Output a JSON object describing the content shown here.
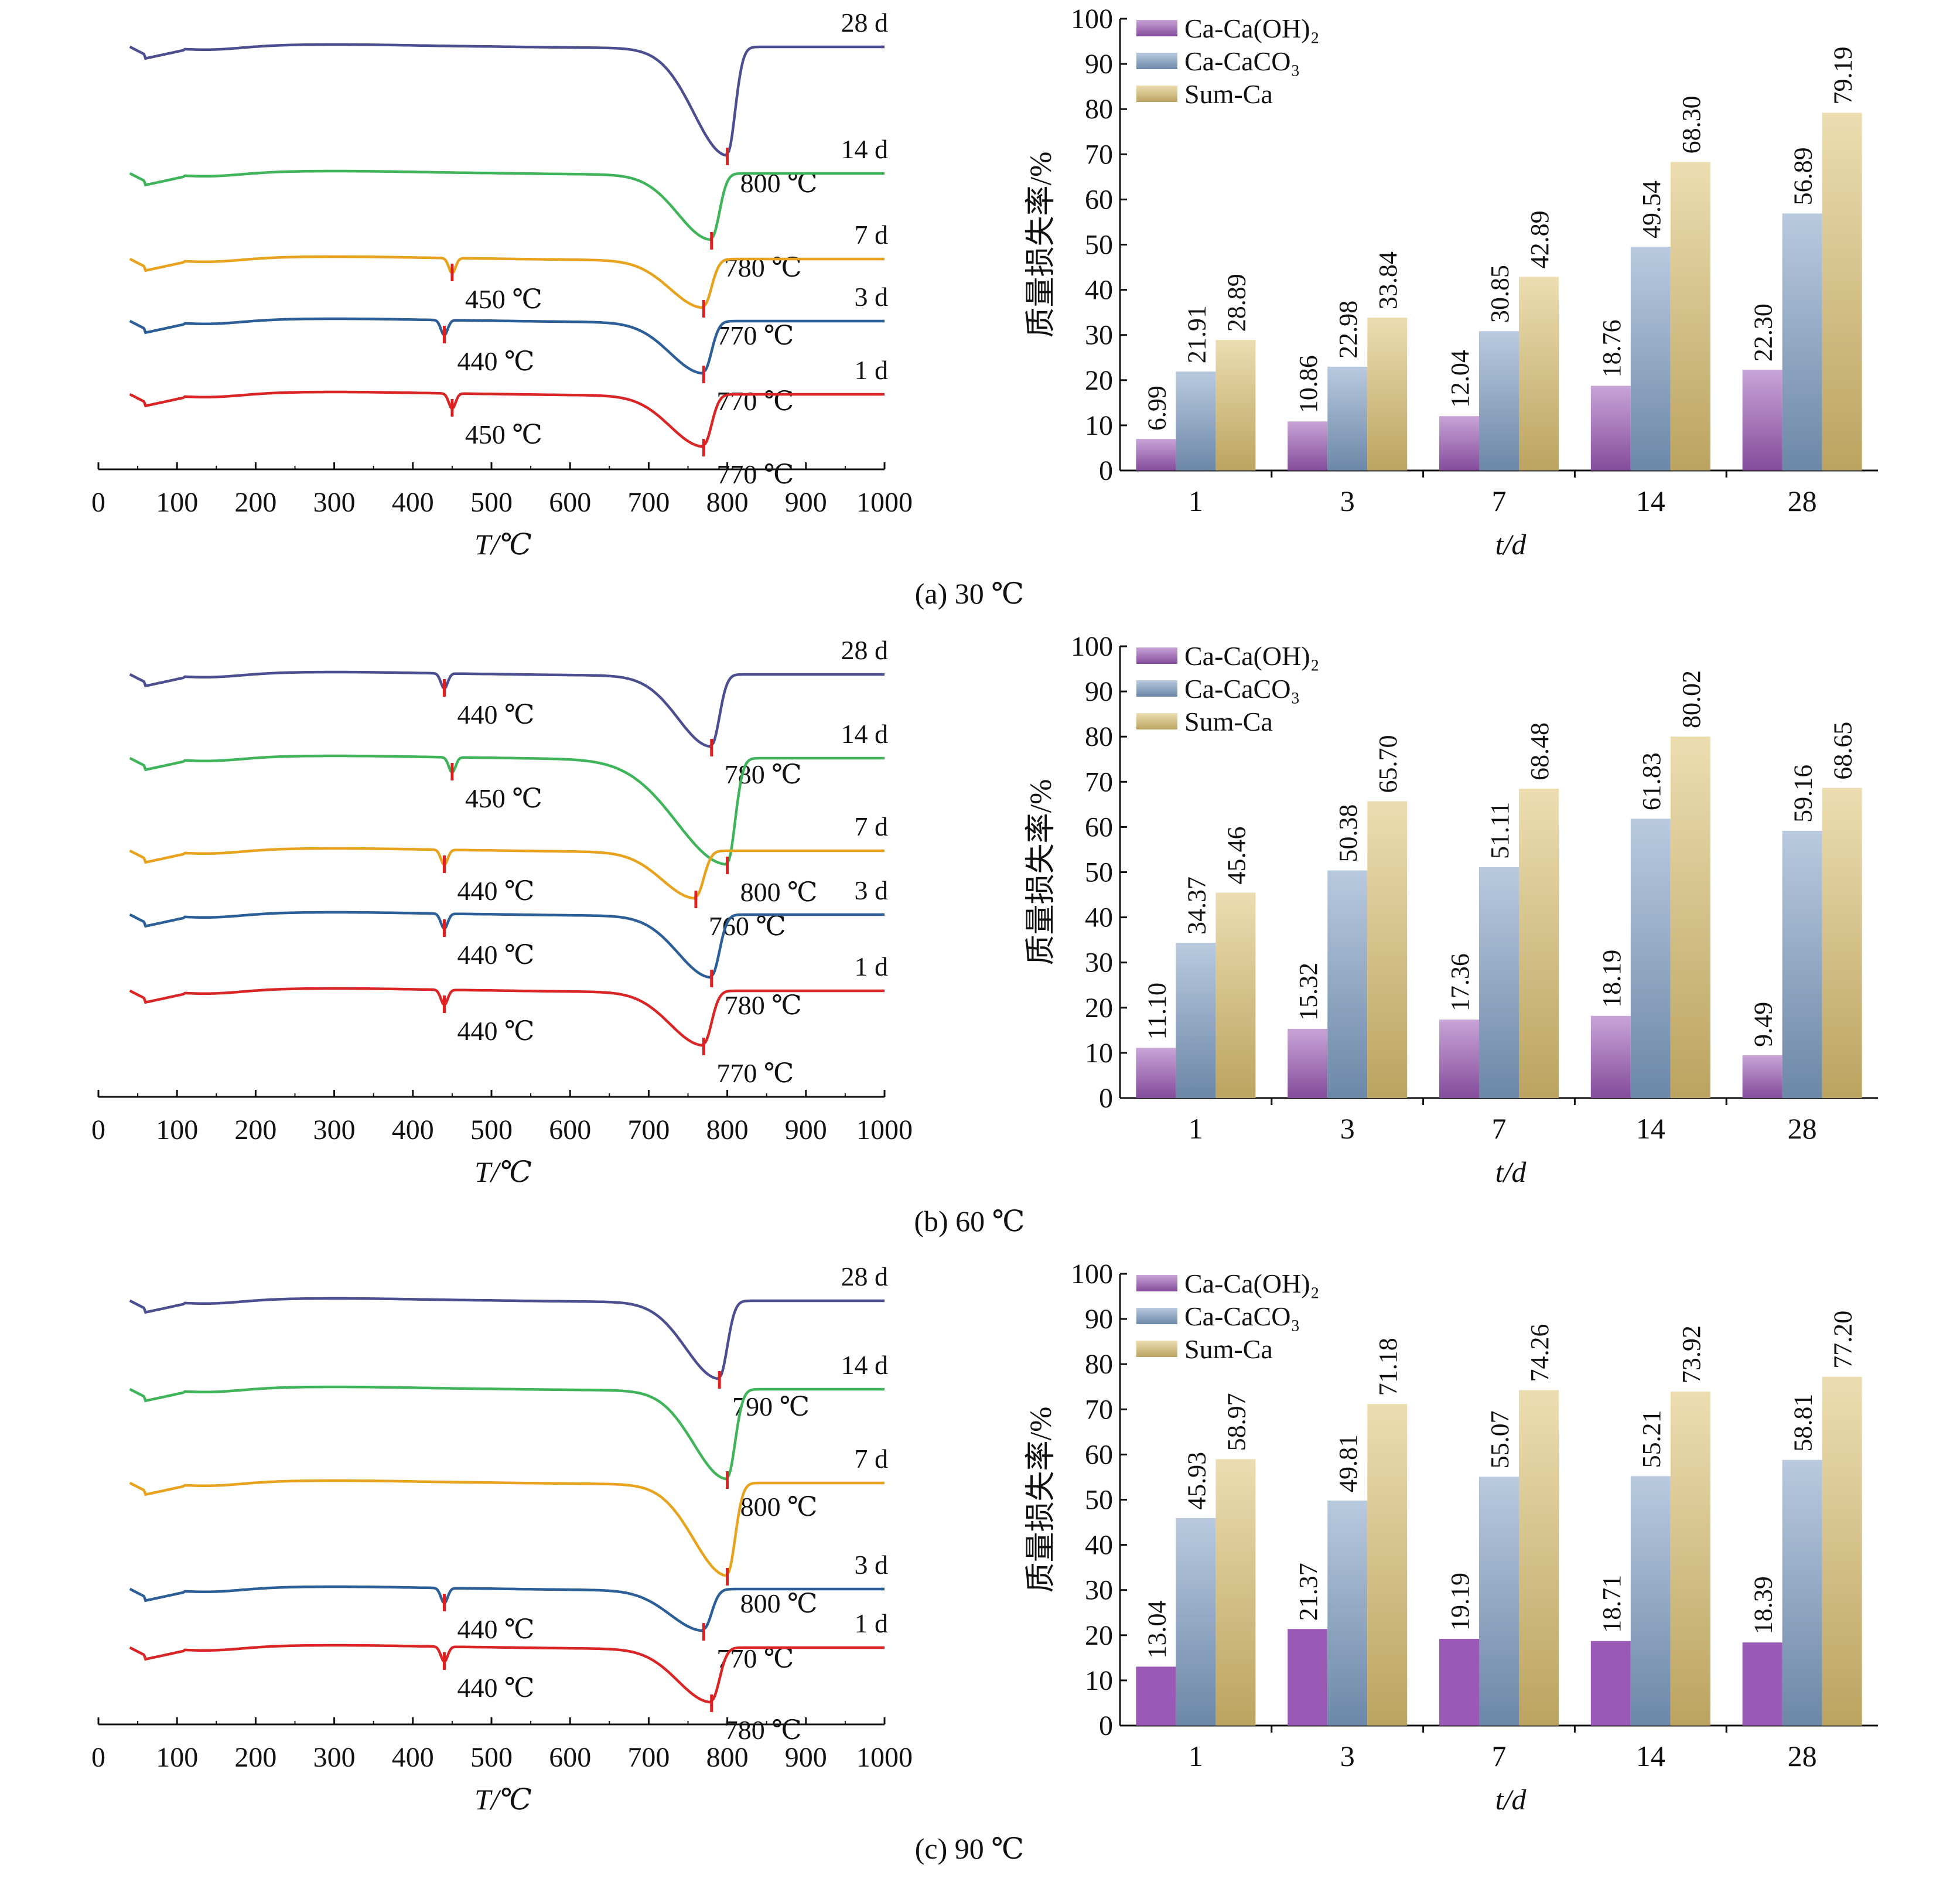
{
  "colors": {
    "ca_oh2": "#9b59b6",
    "ca_caco3": "#7f9fc4",
    "sum_ca": "#dcc172",
    "curve_28d": "#4b4f8f",
    "curve_14d": "#3fb45a",
    "curve_7d": "#e8a31e",
    "curve_3d": "#2c5e97",
    "curve_1d": "#d92525",
    "peak_marker": "#e02020"
  },
  "panels": [
    {
      "caption": "(a) 30 ℃",
      "tg": {
        "xlabel": "T/℃",
        "xticks": [
          "0",
          "100",
          "200",
          "300",
          "400",
          "500",
          "600",
          "700",
          "800",
          "900",
          "1000"
        ],
        "curves": [
          {
            "name": "28 d",
            "color_key": "curve_28d",
            "peaks": [
              {
                "t": 800,
                "label": "800 ℃"
              }
            ]
          },
          {
            "name": "14 d",
            "color_key": "curve_14d",
            "peaks": [
              {
                "t": 780,
                "label": "780 ℃"
              }
            ]
          },
          {
            "name": "7 d",
            "color_key": "curve_7d",
            "peaks": [
              {
                "t": 450,
                "label": "450 ℃"
              },
              {
                "t": 770,
                "label": "770 ℃"
              }
            ]
          },
          {
            "name": "3 d",
            "color_key": "curve_3d",
            "peaks": [
              {
                "t": 440,
                "label": "440 ℃"
              },
              {
                "t": 770,
                "label": "770 ℃"
              }
            ]
          },
          {
            "name": "1 d",
            "color_key": "curve_1d",
            "peaks": [
              {
                "t": 450,
                "label": "450 ℃"
              },
              {
                "t": 770,
                "label": "770 ℃"
              }
            ]
          }
        ]
      },
      "bar": {
        "ylabel": "质量损失率/%",
        "xlabel": "t/d",
        "categories": [
          "1",
          "3",
          "7",
          "14",
          "28"
        ],
        "yticks": [
          "0",
          "10",
          "20",
          "30",
          "40",
          "50",
          "60",
          "70",
          "80",
          "90",
          "100"
        ],
        "series": [
          {
            "name": "Ca-Ca(OH)₂",
            "color_key": "ca_oh2",
            "values": [
              6.99,
              10.86,
              12.04,
              18.76,
              22.3
            ],
            "labels": [
              "6.99",
              "10.86",
              "12.04",
              "18.76",
              "22.30"
            ]
          },
          {
            "name": "Ca-CaCO₃",
            "color_key": "ca_caco3",
            "values": [
              21.91,
              22.98,
              30.85,
              49.54,
              56.89
            ],
            "labels": [
              "21.91",
              "22.98",
              "30.85",
              "49.54",
              "56.89"
            ]
          },
          {
            "name": "Sum-Ca",
            "color_key": "sum_ca",
            "values": [
              28.89,
              33.84,
              42.89,
              68.3,
              79.19
            ],
            "labels": [
              "28.89",
              "33.84",
              "42.89",
              "68.30",
              "79.19"
            ]
          }
        ]
      }
    },
    {
      "caption": "(b) 60 ℃",
      "tg": {
        "xlabel": "T/℃",
        "xticks": [
          "0",
          "100",
          "200",
          "300",
          "400",
          "500",
          "600",
          "700",
          "800",
          "900",
          "1000"
        ],
        "curves": [
          {
            "name": "28 d",
            "color_key": "curve_28d",
            "peaks": [
              {
                "t": 440,
                "label": "440 ℃"
              },
              {
                "t": 780,
                "label": "780 ℃"
              }
            ]
          },
          {
            "name": "14 d",
            "color_key": "curve_14d",
            "peaks": [
              {
                "t": 450,
                "label": "450 ℃"
              },
              {
                "t": 800,
                "label": "800 ℃"
              }
            ]
          },
          {
            "name": "7 d",
            "color_key": "curve_7d",
            "peaks": [
              {
                "t": 440,
                "label": "440 ℃"
              },
              {
                "t": 760,
                "label": "760 ℃"
              }
            ]
          },
          {
            "name": "3 d",
            "color_key": "curve_3d",
            "peaks": [
              {
                "t": 440,
                "label": "440 ℃"
              },
              {
                "t": 780,
                "label": "780 ℃"
              }
            ]
          },
          {
            "name": "1 d",
            "color_key": "curve_1d",
            "peaks": [
              {
                "t": 440,
                "label": "440 ℃"
              },
              {
                "t": 770,
                "label": "770 ℃"
              }
            ]
          }
        ]
      },
      "bar": {
        "ylabel": "质量损失率/%",
        "xlabel": "t/d",
        "categories": [
          "1",
          "3",
          "7",
          "14",
          "28"
        ],
        "yticks": [
          "0",
          "10",
          "20",
          "30",
          "40",
          "50",
          "60",
          "70",
          "80",
          "90",
          "100"
        ],
        "series": [
          {
            "name": "Ca-Ca(OH)₂",
            "color_key": "ca_oh2",
            "values": [
              11.1,
              15.32,
              17.36,
              18.19,
              9.49
            ],
            "labels": [
              "11.10",
              "15.32",
              "17.36",
              "18.19",
              "9.49"
            ]
          },
          {
            "name": "Ca-CaCO₃",
            "color_key": "ca_caco3",
            "values": [
              34.37,
              50.38,
              51.11,
              61.83,
              59.16
            ],
            "labels": [
              "34.37",
              "50.38",
              "51.11",
              "61.83",
              "59.16"
            ]
          },
          {
            "name": "Sum-Ca",
            "color_key": "sum_ca",
            "values": [
              45.46,
              65.7,
              68.48,
              80.02,
              68.65
            ],
            "labels": [
              "45.46",
              "65.70",
              "68.48",
              "80.02",
              "68.65"
            ]
          }
        ]
      }
    },
    {
      "caption": "(c) 90 ℃",
      "tg": {
        "xlabel": "T/℃",
        "xticks": [
          "0",
          "100",
          "200",
          "300",
          "400",
          "500",
          "600",
          "700",
          "800",
          "900",
          "1000"
        ],
        "curves": [
          {
            "name": "28 d",
            "color_key": "curve_28d",
            "peaks": [
              {
                "t": 790,
                "label": "790 ℃"
              }
            ]
          },
          {
            "name": "14 d",
            "color_key": "curve_14d",
            "peaks": [
              {
                "t": 800,
                "label": "800 ℃"
              }
            ]
          },
          {
            "name": "7 d",
            "color_key": "curve_7d",
            "peaks": [
              {
                "t": 800,
                "label": "800 ℃"
              }
            ]
          },
          {
            "name": "3 d",
            "color_key": "curve_3d",
            "peaks": [
              {
                "t": 440,
                "label": "440 ℃"
              },
              {
                "t": 770,
                "label": "770 ℃"
              }
            ]
          },
          {
            "name": "1 d",
            "color_key": "curve_1d",
            "peaks": [
              {
                "t": 440,
                "label": "440 ℃"
              },
              {
                "t": 780,
                "label": "780 ℃"
              }
            ]
          }
        ]
      },
      "bar": {
        "ylabel": "质量损失率/%",
        "xlabel": "t/d",
        "categories": [
          "1",
          "3",
          "7",
          "14",
          "28"
        ],
        "yticks": [
          "0",
          "10",
          "20",
          "30",
          "40",
          "50",
          "60",
          "70",
          "80",
          "90",
          "100"
        ],
        "series": [
          {
            "name": "Ca-Ca(OH)₂",
            "color_key": "ca_oh2",
            "values": [
              13.04,
              21.37,
              19.19,
              18.71,
              18.39
            ],
            "labels": [
              "13.04",
              "21.37",
              "19.19",
              "18.71",
              "18.39"
            ]
          },
          {
            "name": "Ca-CaCO₃",
            "color_key": "ca_caco3",
            "values": [
              45.93,
              49.81,
              55.07,
              55.21,
              58.81
            ],
            "labels": [
              "45.93",
              "49.81",
              "55.07",
              "55.21",
              "58.81"
            ]
          },
          {
            "name": "Sum-Ca",
            "color_key": "sum_ca",
            "values": [
              58.97,
              71.18,
              74.26,
              73.92,
              77.2
            ],
            "labels": [
              "58.97",
              "71.18",
              "74.26",
              "73.92",
              "77.20"
            ]
          }
        ]
      }
    }
  ],
  "chart_data": [
    {
      "type": "bar",
      "categories": [
        "1",
        "3",
        "7",
        "14",
        "28"
      ],
      "xlabel": "t/d",
      "ylabel": "质量损失率/%",
      "ylim": [
        0,
        100
      ],
      "series": [
        {
          "name": "Ca-Ca(OH)₂",
          "values": [
            6.99,
            10.86,
            12.04,
            18.76,
            22.3
          ]
        },
        {
          "name": "Ca-CaCO₃",
          "values": [
            21.91,
            22.98,
            30.85,
            49.54,
            56.89
          ]
        },
        {
          "name": "Sum-Ca",
          "values": [
            28.89,
            33.84,
            42.89,
            68.3,
            79.19
          ]
        }
      ]
    },
    {
      "type": "bar",
      "categories": [
        "1",
        "3",
        "7",
        "14",
        "28"
      ],
      "xlabel": "t/d",
      "ylabel": "质量损失率/%",
      "ylim": [
        0,
        100
      ],
      "series": [
        {
          "name": "Ca-Ca(OH)₂",
          "values": [
            11.1,
            15.32,
            17.36,
            18.19,
            9.49
          ]
        },
        {
          "name": "Ca-CaCO₃",
          "values": [
            34.37,
            50.38,
            51.11,
            61.83,
            59.16
          ]
        },
        {
          "name": "Sum-Ca",
          "values": [
            45.46,
            65.7,
            68.48,
            80.02,
            68.65
          ]
        }
      ]
    },
    {
      "type": "bar",
      "categories": [
        "1",
        "3",
        "7",
        "14",
        "28"
      ],
      "xlabel": "t/d",
      "ylabel": "质量损失率/%",
      "ylim": [
        0,
        100
      ],
      "series": [
        {
          "name": "Ca-Ca(OH)₂",
          "values": [
            13.04,
            21.37,
            19.19,
            18.71,
            18.39
          ]
        },
        {
          "name": "Ca-CaCO₃",
          "values": [
            45.93,
            49.81,
            55.07,
            55.21,
            58.81
          ]
        },
        {
          "name": "Sum-Ca",
          "values": [
            58.97,
            71.18,
            74.26,
            73.92,
            77.2
          ]
        }
      ]
    },
    {
      "type": "line",
      "xlabel": "T/℃",
      "xlim": [
        0,
        1000
      ],
      "series": [
        "28 d",
        "14 d",
        "7 d",
        "3 d",
        "1 d"
      ]
    },
    {
      "type": "line",
      "xlabel": "T/℃",
      "xlim": [
        0,
        1000
      ],
      "series": [
        "28 d",
        "14 d",
        "7 d",
        "3 d",
        "1 d"
      ]
    },
    {
      "type": "line",
      "xlabel": "T/℃",
      "xlim": [
        0,
        1000
      ],
      "series": [
        "28 d",
        "14 d",
        "7 d",
        "3 d",
        "1 d"
      ]
    }
  ]
}
